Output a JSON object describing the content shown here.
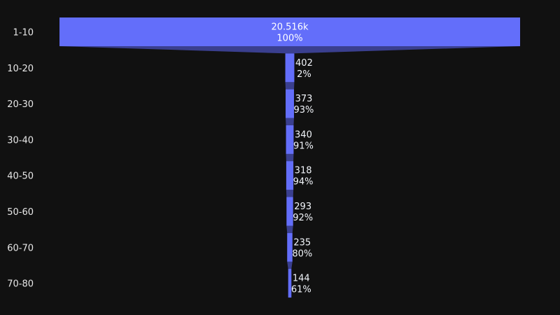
{
  "chart_data": {
    "type": "funnel",
    "categories": [
      "1-10",
      "10-20",
      "20-30",
      "30-40",
      "40-50",
      "50-60",
      "60-70",
      "70-80"
    ],
    "values": [
      20516,
      402,
      373,
      340,
      318,
      293,
      235,
      144
    ],
    "value_labels": [
      "20.516k",
      "402",
      "373",
      "340",
      "318",
      "293",
      "235",
      "144"
    ],
    "percent_labels": [
      "100%",
      "2%",
      "93%",
      "91%",
      "94%",
      "92%",
      "80%",
      "61%"
    ],
    "percent_basis": "percent of previous",
    "title": "",
    "xlabel": "",
    "ylabel": "",
    "grid": false,
    "legend": false
  },
  "colors": {
    "background": "#111111",
    "bar": "#636efa",
    "connector": "#3a3f8f",
    "text_inside": "#ffffff",
    "text_outside": "#f2f5fa",
    "axis_text": "#e8e8e8"
  }
}
